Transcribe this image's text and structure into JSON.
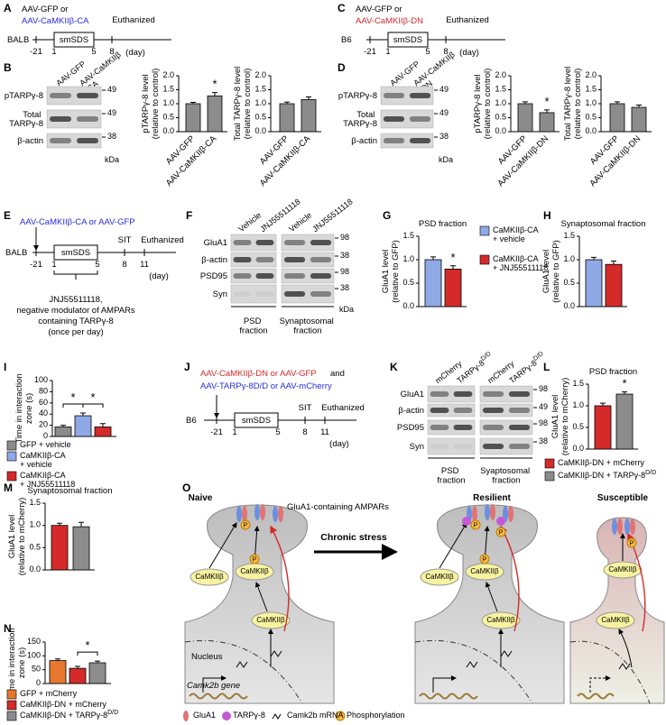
{
  "panel_labels": [
    "A",
    "B",
    "C",
    "D",
    "E",
    "F",
    "G",
    "H",
    "I",
    "J",
    "K",
    "L",
    "M",
    "N",
    "O"
  ],
  "timelines": [
    {
      "virus": [
        "AAV-GFP or",
        "AAV-CaMKIIβ-CA"
      ],
      "virus_colors": [
        "#000000",
        "#2b2be0"
      ],
      "strain": "BALB",
      "protocol": "smSDS",
      "days": [
        -21,
        1,
        5,
        8
      ],
      "events": [
        "Euthanized"
      ],
      "unit": "(day)"
    },
    {
      "virus": [
        "AAV-GFP or",
        "AAV-CaMKIIβ-DN"
      ],
      "virus_colors": [
        "#000000",
        "#d42a2a"
      ],
      "strain": "B6",
      "protocol": "smSDS",
      "days": [
        -21,
        1,
        5,
        8
      ],
      "events": [
        "Euthanized"
      ],
      "unit": "(day)"
    },
    {
      "virus": [
        "AAV-CaMKIIβ-CA or AAV-GFP"
      ],
      "virus_colors": [
        "#2b2be0"
      ],
      "strain": "BALB",
      "protocol": "smSDS",
      "days": [
        -21,
        1,
        5,
        8,
        11
      ],
      "events": [
        "SIT",
        "Euthanized"
      ],
      "unit": "(day)",
      "note": [
        "JNJ55511118,",
        "negative modulator of AMPARs",
        "containing TARPγ-8",
        "(once per day)"
      ]
    },
    {
      "virus": [
        "AAV-CaMKIIβ-DN or AAV-GFP",
        "and",
        "AAV-TARPγ-8D/D or AAV-mCherry"
      ],
      "virus_colors": [
        "#d42a2a",
        "#000000",
        "#2b2be0"
      ],
      "strain": "B6",
      "protocol": "smSDS",
      "days": [
        -21,
        1,
        5,
        8,
        11
      ],
      "events": [
        "SIT",
        "Euthanized"
      ],
      "unit": "(day)"
    }
  ],
  "blots": [
    {
      "lanes": [
        "AAV-GFP",
        "AAV-CaMKIIβ-CA"
      ],
      "rows": [
        "pTARPγ-8",
        "Total TARPγ-8",
        "β-actin"
      ],
      "markers": [
        49,
        49,
        38
      ],
      "unit": "kDa"
    },
    {
      "lanes": [
        "AAV-GFP",
        "AAV-CaMKIIβ-DN"
      ],
      "rows": [
        "pTARPγ-8",
        "Total TARPγ-8",
        "β-actin"
      ],
      "markers": [
        49,
        49,
        38
      ],
      "unit": "kDa"
    },
    {
      "lanes": [
        "Vehicle",
        "JNJ55511118",
        "Vehicle",
        "JNJ55511118"
      ],
      "rows": [
        "GluA1",
        "β-actin",
        "PSD95",
        "Syn"
      ],
      "markers": [
        98,
        38,
        98,
        38
      ],
      "unit": "kDa",
      "fractions": [
        "PSD fraction",
        "Synaptosomal fraction"
      ]
    },
    {
      "lanes": [
        "mCherry",
        "TARPγ-8D/D",
        "mCherry",
        "TARPγ-8D/D"
      ],
      "rows": [
        "GluA1",
        "β-actin",
        "PSD95",
        "Syn"
      ],
      "markers": [
        98,
        49,
        98,
        38
      ],
      "fractions": [
        "PSD fraction",
        "Syaptosomal fraction"
      ]
    }
  ],
  "chart_data": [
    {
      "type": "bar",
      "ylabel": [
        "pTARPγ-8 level",
        "(relative to control)"
      ],
      "categories": [
        "AAV-GFP",
        "AAV-CaMKIIβ-CA"
      ],
      "values": [
        1.0,
        1.28
      ],
      "errors": [
        0.05,
        0.12
      ],
      "colors": [
        "#8c8c8c",
        "#8c8c8c"
      ],
      "ylim": [
        0,
        2
      ],
      "yticks": [
        {
          "value": 0,
          "label": "0.0"
        },
        0.5,
        {
          "value": 1,
          "label": "1.0"
        },
        1.5,
        {
          "value": 2,
          "label": "2.0"
        }
      ],
      "annotations": [
        {
          "text": "*",
          "bars": [
            1
          ]
        }
      ]
    },
    {
      "type": "bar",
      "ylabel": [
        "Total TARPγ-8 level",
        "(relative to control)"
      ],
      "categories": [
        "AAV-GFP",
        "AAV-CaMKIIβ-CA"
      ],
      "values": [
        1.0,
        1.15
      ],
      "errors": [
        0.06,
        0.09
      ],
      "colors": [
        "#8c8c8c",
        "#8c8c8c"
      ],
      "ylim": [
        0,
        2
      ],
      "yticks": [
        {
          "value": 0,
          "label": "0.0"
        },
        0.5,
        {
          "value": 1,
          "label": "1.0"
        },
        1.5,
        {
          "value": 2,
          "label": "2.0"
        }
      ]
    },
    {
      "type": "bar",
      "ylabel": [
        "pTARPγ-8 level",
        "(relative to control)"
      ],
      "categories": [
        "AAV-GFP",
        "AAV-CaMKIIβ-DN"
      ],
      "values": [
        1.0,
        0.68
      ],
      "errors": [
        0.07,
        0.1
      ],
      "colors": [
        "#8c8c8c",
        "#8c8c8c"
      ],
      "ylim": [
        0,
        2
      ],
      "yticks": [
        {
          "value": 0,
          "label": "0.0"
        },
        0.5,
        {
          "value": 1,
          "label": "1.0"
        },
        1.5,
        {
          "value": 2,
          "label": "2.0"
        }
      ],
      "annotations": [
        {
          "text": "*",
          "bars": [
            1
          ]
        }
      ]
    },
    {
      "type": "bar",
      "ylabel": [
        "Total TARPγ-8 level",
        "(relative to control)"
      ],
      "categories": [
        "AAV-GFP",
        "AAV-CaMKIIβ-DN"
      ],
      "values": [
        1.0,
        0.87
      ],
      "errors": [
        0.07,
        0.08
      ],
      "colors": [
        "#8c8c8c",
        "#8c8c8c"
      ],
      "ylim": [
        0,
        2
      ],
      "yticks": [
        {
          "value": 0,
          "label": "0.0"
        },
        0.5,
        {
          "value": 1,
          "label": "1.0"
        },
        1.5,
        {
          "value": 2,
          "label": "2.0"
        }
      ]
    },
    {
      "type": "bar",
      "title": "PSD fraction",
      "ylabel": [
        "GluA1 level",
        "(relative to GFP)"
      ],
      "categories": [
        "CaMKIIβ-CA + vehicle",
        "CaMKIIβ-CA + JNJ55511118"
      ],
      "legend": true,
      "values": [
        1.0,
        0.8
      ],
      "errors": [
        0.06,
        0.07
      ],
      "colors": [
        "#8fa9e6",
        "#d42a2a"
      ],
      "ylim": [
        0,
        1.5
      ],
      "yticks": [
        {
          "value": 0,
          "label": "0.0"
        },
        0.5,
        {
          "value": 1,
          "label": "1.0"
        },
        1.5
      ],
      "annotations": [
        {
          "text": "*",
          "bars": [
            1
          ]
        }
      ]
    },
    {
      "type": "bar",
      "title": "Synaptosomal fraction",
      "ylabel": [
        "GluA1 level",
        "(relative to GFP)"
      ],
      "values": [
        1.0,
        0.9
      ],
      "errors": [
        0.05,
        0.07
      ],
      "colors": [
        "#8fa9e6",
        "#d42a2a"
      ],
      "ylim": [
        0,
        1.5
      ],
      "yticks": [
        {
          "value": 0,
          "label": "0.0"
        },
        0.5,
        {
          "value": 1,
          "label": "1.0"
        },
        1.5
      ]
    },
    {
      "type": "bar",
      "ylabel": [
        "Time in interaction",
        "zone (s)"
      ],
      "categories": [
        "GFP + vehicle",
        "CaMKIIβ-CA + vehicle",
        "CaMKIIβ-CA + JNJ55511118"
      ],
      "legend": true,
      "values": [
        17,
        37,
        17
      ],
      "errors": [
        3,
        5,
        6
      ],
      "colors": [
        "#8c8c8c",
        "#8fa9e6",
        "#d42a2a"
      ],
      "ylim": [
        0,
        100
      ],
      "yticks": [
        0,
        20,
        40,
        60,
        80,
        100
      ],
      "annotations": [
        {
          "text": "*",
          "bars": [
            0,
            1
          ]
        },
        {
          "text": "*",
          "bars": [
            1,
            2
          ]
        }
      ]
    },
    {
      "type": "bar",
      "title": "PSD fraction",
      "ylabel": [
        "GluA1 level",
        "(relative to mCherry)"
      ],
      "categories": [
        "CaMKIIβ-DN + mCherry",
        "CaMKIIβ-DN + TARPγ-8D/D"
      ],
      "legend": true,
      "values": [
        1.0,
        1.27
      ],
      "errors": [
        0.06,
        0.05
      ],
      "colors": [
        "#d42a2a",
        "#8c8c8c"
      ],
      "ylim": [
        0,
        1.5
      ],
      "yticks": [
        {
          "value": 0,
          "label": "0.0"
        },
        0.5,
        {
          "value": 1,
          "label": "1.0"
        },
        1.5
      ],
      "annotations": [
        {
          "text": "*",
          "bars": [
            1
          ]
        }
      ]
    },
    {
      "type": "bar",
      "title": "Synaptosomal fraction",
      "ylabel": [
        "GluA1 level",
        "(relative to mCherry)"
      ],
      "values": [
        1.0,
        0.97
      ],
      "errors": [
        0.05,
        0.1
      ],
      "colors": [
        "#d42a2a",
        "#8c8c8c"
      ],
      "ylim": [
        0,
        1.5
      ],
      "yticks": [
        {
          "value": 0,
          "label": "0.0"
        },
        0.5,
        {
          "value": 1,
          "label": "1.0"
        },
        1.5
      ]
    },
    {
      "type": "bar",
      "ylabel": [
        "Time in interaction",
        "zone (s)"
      ],
      "categories": [
        "GFP + mCherry",
        "CaMKIIβ-DN + mCherry",
        "CaMKIIβ-DN + TARPγ-8D/D"
      ],
      "legend": true,
      "values": [
        83,
        55,
        75
      ],
      "errors": [
        6,
        7,
        6
      ],
      "colors": [
        "#e8772e",
        "#d42a2a",
        "#8c8c8c"
      ],
      "ylim": [
        0,
        150
      ],
      "yticks": [
        0,
        50,
        100,
        150
      ],
      "annotations": [
        {
          "text": "*",
          "bars": [
            1,
            2
          ]
        }
      ]
    }
  ],
  "model": {
    "states": [
      "Naive",
      "Resilient",
      "Susceptible"
    ],
    "receptor_label": "GluA1-containing AMPARs",
    "transition": "Chronic stress",
    "nucleus": "Nucleus",
    "gene": "Camk2b gene",
    "kinase": "CaMKIIβ",
    "phospho": "P",
    "legend": [
      "GluA1",
      "TARPγ-8",
      "Camk2b mRNA",
      "Phosphorylation"
    ]
  }
}
